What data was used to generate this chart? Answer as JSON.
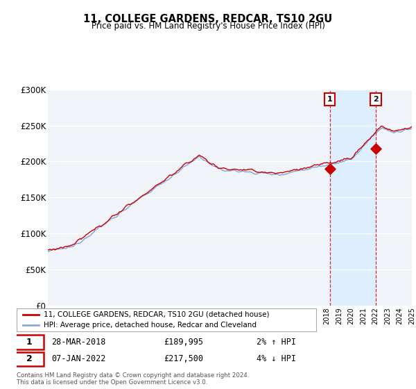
{
  "title": "11, COLLEGE GARDENS, REDCAR, TS10 2GU",
  "subtitle": "Price paid vs. HM Land Registry's House Price Index (HPI)",
  "legend_label_red": "11, COLLEGE GARDENS, REDCAR, TS10 2GU (detached house)",
  "legend_label_blue": "HPI: Average price, detached house, Redcar and Cleveland",
  "annotation1_date": "28-MAR-2018",
  "annotation1_price": "£189,995",
  "annotation1_hpi": "2% ↑ HPI",
  "annotation2_date": "07-JAN-2022",
  "annotation2_price": "£217,500",
  "annotation2_hpi": "4% ↓ HPI",
  "footnote1": "Contains HM Land Registry data © Crown copyright and database right 2024.",
  "footnote2": "This data is licensed under the Open Government Licence v3.0.",
  "xmin": 1995,
  "xmax": 2025,
  "ymin": 0,
  "ymax": 300000,
  "yticks": [
    0,
    50000,
    100000,
    150000,
    200000,
    250000,
    300000
  ],
  "ytick_labels": [
    "£0",
    "£50K",
    "£100K",
    "£150K",
    "£200K",
    "£250K",
    "£300K"
  ],
  "color_red": "#cc0000",
  "color_blue": "#88aadd",
  "color_shade": "#ddeeff",
  "background_chart": "#f0f4f8",
  "background_fig": "#ffffff",
  "sale1_year": 2018.24,
  "sale1_price": 189995,
  "sale2_year": 2022.03,
  "sale2_price": 217500
}
